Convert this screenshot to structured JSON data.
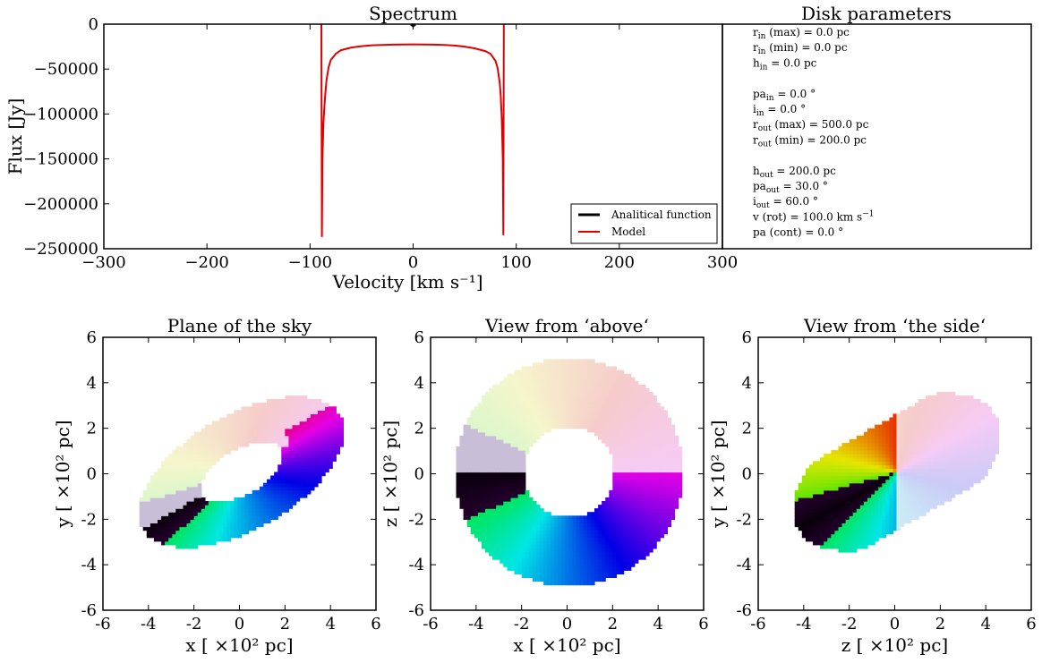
{
  "chart_data": [
    {
      "type": "line",
      "title": "Spectrum",
      "xlabel": "Velocity [km s⁻¹]",
      "ylabel": "Flux [Jy]",
      "xlim": [
        -300,
        300
      ],
      "ylim": [
        -250000,
        0
      ],
      "x_ticks": [
        "−300",
        "−200",
        "−100",
        "0",
        "100",
        "200",
        "300"
      ],
      "y_ticks": [
        "0",
        "−50000",
        "−100000",
        "−150000",
        "−200000",
        "−250000"
      ],
      "legend_position": "lower-right",
      "series": [
        {
          "name": "Analitical function",
          "color": "#000000",
          "x": [
            -2,
            0,
            2
          ],
          "y": [
            0,
            -2000,
            0
          ]
        },
        {
          "name": "Model",
          "color": "#e00000",
          "x": [
            -89,
            -88.5,
            -88,
            -87,
            -86,
            -85,
            -84,
            -82,
            -80,
            -75,
            -70,
            -60,
            -50,
            -40,
            -30,
            -20,
            -10,
            0,
            10,
            20,
            30,
            40,
            50,
            60,
            70,
            75,
            80,
            82,
            84,
            85,
            86,
            87,
            87.5,
            88
          ],
          "y": [
            0,
            -237000,
            -150000,
            -110000,
            -90000,
            -75000,
            -62000,
            -48000,
            -40000,
            -33000,
            -29000,
            -26000,
            -24500,
            -23500,
            -23200,
            -22800,
            -22600,
            -22500,
            -22600,
            -22800,
            -23200,
            -23800,
            -25000,
            -27000,
            -30000,
            -33000,
            -41000,
            -49000,
            -65000,
            -80000,
            -105000,
            -150000,
            -235000,
            0
          ]
        }
      ]
    },
    {
      "type": "table",
      "title": "Disk parameters",
      "rows": [
        [
          "r",
          "in",
          " (max) = 0.0 pc"
        ],
        [
          "r",
          "in",
          " (min) = 0.0 pc"
        ],
        [
          "h",
          "in",
          "  = 0.0 pc"
        ],
        [
          "",
          "",
          ""
        ],
        [
          "pa",
          "in",
          " = 0.0 °"
        ],
        [
          "i",
          "in",
          " = 0.0 °"
        ],
        [
          "r",
          "out",
          " (max) = 500.0 pc"
        ],
        [
          "r",
          "out",
          " (min) = 200.0 pc"
        ],
        [
          "",
          "",
          ""
        ],
        [
          "h",
          "out",
          "  = 200.0 pc"
        ],
        [
          "pa",
          "out",
          " = 30.0 °"
        ],
        [
          "i",
          "out",
          " = 60.0 °"
        ],
        [
          "v (rot) = 100.0 km s",
          "",
          ""
        ],
        [
          "pa  (cont) = 0.0 °",
          "",
          ""
        ]
      ],
      "rot_exponent": "−1"
    },
    {
      "type": "heatmap",
      "title": "Plane of the sky",
      "xlabel": "x [ ×10² pc]",
      "ylabel": "y [ ×10² pc]",
      "xlim": [
        -6,
        6
      ],
      "ylim": [
        -6,
        6
      ],
      "ticks": [
        "-6",
        "-4",
        "-2",
        "0",
        "2",
        "4",
        "6"
      ],
      "disk": {
        "r_in": 2.0,
        "r_out": 5.0,
        "incl_deg": 60,
        "pa_deg": 30,
        "mode": "sky"
      }
    },
    {
      "type": "heatmap",
      "title": "View from ‘above‘",
      "xlabel": "x [ ×10² pc]",
      "ylabel": "z [ ×10² pc]",
      "xlim": [
        -6,
        6
      ],
      "ylim": [
        -6,
        6
      ],
      "ticks": [
        "-6",
        "-4",
        "-2",
        "0",
        "2",
        "4",
        "6"
      ],
      "disk": {
        "r_in": 2.0,
        "r_out": 5.0,
        "incl_deg": 0,
        "pa_deg": 0,
        "mode": "above"
      }
    },
    {
      "type": "heatmap",
      "title": "View from ‘the side‘",
      "xlabel": "z [ ×10² pc]",
      "ylabel": "y [ ×10² pc]",
      "xlim": [
        -6,
        6
      ],
      "ylim": [
        -6,
        6
      ],
      "ticks": [
        "-6",
        "-4",
        "-2",
        "0",
        "2",
        "4",
        "6"
      ],
      "disk": {
        "r_in": 0.0,
        "r_out": 5.0,
        "incl_deg": 60,
        "pa_deg": 30,
        "mode": "side"
      }
    }
  ]
}
